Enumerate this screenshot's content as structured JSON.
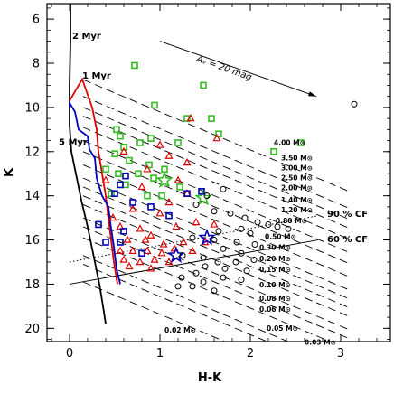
{
  "chart_data": {
    "type": "scatter",
    "title": "",
    "xlabel": "H-K",
    "ylabel": "K",
    "xlim": [
      -0.25,
      3.55
    ],
    "ylim": [
      20.6,
      5.3
    ],
    "y_inverted": true,
    "x_ticks": [
      0,
      1,
      2,
      3
    ],
    "y_ticks": [
      6,
      8,
      10,
      12,
      14,
      16,
      18,
      20
    ],
    "x_tick_labels": [
      "0",
      "1",
      "2",
      "3"
    ],
    "y_tick_labels": [
      "6",
      "8",
      "10",
      "12",
      "14",
      "16",
      "18",
      "20"
    ],
    "isochrones": [
      {
        "label": "2 Myr",
        "label_pos": [
          0.03,
          6.9
        ],
        "color": "#000000",
        "points": [
          [
            0.01,
            5.3
          ],
          [
            0.01,
            7.0
          ],
          [
            0.0,
            9.0
          ],
          [
            0.0,
            10.8
          ],
          [
            0.02,
            12.0
          ],
          [
            0.07,
            13.0
          ],
          [
            0.13,
            14.2
          ],
          [
            0.2,
            15.4
          ],
          [
            0.27,
            16.8
          ],
          [
            0.33,
            18.0
          ],
          [
            0.37,
            19.0
          ],
          [
            0.4,
            19.8
          ]
        ]
      },
      {
        "label": "1 Myr",
        "label_pos": [
          0.14,
          8.7
        ],
        "color": "#dd0000",
        "points": [
          [
            0.0,
            9.7
          ],
          [
            0.14,
            8.72
          ],
          [
            0.25,
            10.0
          ],
          [
            0.3,
            11.0
          ],
          [
            0.32,
            12.0
          ],
          [
            0.36,
            13.0
          ],
          [
            0.4,
            14.0
          ],
          [
            0.43,
            15.0
          ],
          [
            0.46,
            16.0
          ],
          [
            0.49,
            17.0
          ],
          [
            0.53,
            18.0
          ]
        ]
      },
      {
        "label": "5 Myr",
        "label_pos": [
          -0.12,
          11.7
        ],
        "color": "#0000bb",
        "points": [
          [
            0.0,
            10.0
          ],
          [
            0.0,
            9.8
          ],
          [
            0.06,
            10.2
          ],
          [
            0.1,
            11.0
          ],
          [
            0.2,
            11.3
          ],
          [
            0.22,
            11.9
          ],
          [
            0.28,
            12.3
          ],
          [
            0.3,
            13.2
          ],
          [
            0.36,
            14.0
          ],
          [
            0.43,
            14.5
          ],
          [
            0.45,
            15.2
          ],
          [
            0.49,
            16.3
          ],
          [
            0.52,
            17.3
          ],
          [
            0.56,
            18.0
          ]
        ]
      }
    ],
    "reddening_lines": [
      {
        "label": "4.00 M⊙",
        "k0": 8.74,
        "label_pos": [
          2.26,
          11.7
        ]
      },
      {
        "label": "3.50 M⊙",
        "k0": 9.5,
        "label_pos": [
          2.34,
          12.4
        ]
      },
      {
        "label": "3.00 M⊙",
        "k0": 10.0,
        "label_pos": [
          2.34,
          12.85
        ]
      },
      {
        "label": "2.50 M⊙",
        "k0": 10.4,
        "label_pos": [
          2.34,
          13.3
        ]
      },
      {
        "label": "2.00 M⊙",
        "k0": 10.9,
        "label_pos": [
          2.34,
          13.75
        ]
      },
      {
        "label": "1.40 M⊙",
        "k0": 11.5,
        "label_pos": [
          2.34,
          14.3
        ]
      },
      {
        "label": "1.20 M⊙",
        "k0": 12.0,
        "label_pos": [
          2.34,
          14.75
        ]
      },
      {
        "label": "0.80 M⊙",
        "k0": 12.6,
        "label_pos": [
          2.28,
          15.25
        ]
      },
      {
        "label": "0.50 M⊙",
        "k0": 13.2,
        "label_pos": [
          2.16,
          15.95
        ]
      },
      {
        "label": "0.30 M⊙",
        "k0": 13.6,
        "label_pos": [
          2.1,
          16.45
        ]
      },
      {
        "label": "0.20 M⊙",
        "k0": 14.0,
        "label_pos": [
          2.1,
          16.95
        ]
      },
      {
        "label": "0.15 M⊙",
        "k0": 14.4,
        "label_pos": [
          2.1,
          17.45
        ]
      },
      {
        "label": "0.10 M⊙",
        "k0": 15.0,
        "label_pos": [
          2.1,
          18.15
        ]
      },
      {
        "label": "0.08 M⊙",
        "k0": 15.4,
        "label_pos": [
          2.1,
          18.75
        ]
      },
      {
        "label": "0.06 M⊙",
        "k0": 15.9,
        "label_pos": [
          2.1,
          19.25
        ]
      },
      {
        "label": "0.05 M⊙",
        "k0": 16.7,
        "label_pos": [
          2.18,
          20.1
        ]
      },
      {
        "label": "0.03 M⊙",
        "k0": 17.1,
        "label_pos": [
          2.6,
          20.75
        ]
      },
      {
        "label": "0.02 M⊙",
        "k0": 17.9,
        "label_pos": [
          1.05,
          20.2
        ]
      }
    ],
    "reddening_slope": 1.72,
    "reddening_x_end": 3.1,
    "av_arrow": {
      "label": "Aᵥ = 20 mag",
      "from": [
        1.0,
        7.0
      ],
      "to": [
        2.73,
        9.5
      ],
      "label_pos": [
        1.4,
        7.9
      ]
    },
    "completeness": [
      {
        "label": "90 % CF",
        "from": [
          0.0,
          17.0
        ],
        "to": [
          2.75,
          14.9
        ],
        "style": "dotted",
        "label_pos": [
          2.85,
          14.95
        ]
      },
      {
        "label": "60 % CF",
        "from": [
          0.0,
          18.0
        ],
        "to": [
          2.75,
          16.0
        ],
        "style": "solid",
        "label_pos": [
          2.85,
          16.1
        ]
      }
    ],
    "series": [
      {
        "name": "",
        "marker": "square",
        "color": "#33bb22",
        "points": [
          [
            0.72,
            8.1
          ],
          [
            1.48,
            9.0
          ],
          [
            0.94,
            9.9
          ],
          [
            1.3,
            10.5
          ],
          [
            1.57,
            10.5
          ],
          [
            0.52,
            11.0
          ],
          [
            0.56,
            11.3
          ],
          [
            0.9,
            11.4
          ],
          [
            1.2,
            11.6
          ],
          [
            0.78,
            11.6
          ],
          [
            1.65,
            11.2
          ],
          [
            0.6,
            11.8
          ],
          [
            0.5,
            12.1
          ],
          [
            0.66,
            12.4
          ],
          [
            0.88,
            12.6
          ],
          [
            1.05,
            12.8
          ],
          [
            0.4,
            12.8
          ],
          [
            0.54,
            13.0
          ],
          [
            0.76,
            13.0
          ],
          [
            0.93,
            13.2
          ],
          [
            0.62,
            13.5
          ],
          [
            1.22,
            13.6
          ],
          [
            0.46,
            13.9
          ],
          [
            0.86,
            14.0
          ],
          [
            1.02,
            14.0
          ],
          [
            2.26,
            12.0
          ],
          [
            2.56,
            11.6
          ]
        ]
      },
      {
        "name": "",
        "marker": "star",
        "color": "#33bb22",
        "points": [
          [
            1.05,
            13.3
          ],
          [
            1.48,
            14.1
          ]
        ]
      },
      {
        "name": "",
        "marker": "triangle",
        "color": "#dd0000",
        "points": [
          [
            1.34,
            10.5
          ],
          [
            1.63,
            11.4
          ],
          [
            1.0,
            11.7
          ],
          [
            0.6,
            12.0
          ],
          [
            1.1,
            12.2
          ],
          [
            1.3,
            12.5
          ],
          [
            0.86,
            12.8
          ],
          [
            1.2,
            13.3
          ],
          [
            0.4,
            13.3
          ],
          [
            0.8,
            13.6
          ],
          [
            1.3,
            13.9
          ],
          [
            1.1,
            14.3
          ],
          [
            0.7,
            14.6
          ],
          [
            1.0,
            14.8
          ],
          [
            0.48,
            15.0
          ],
          [
            0.56,
            15.4
          ],
          [
            0.78,
            15.5
          ],
          [
            0.9,
            15.8
          ],
          [
            1.18,
            15.4
          ],
          [
            1.4,
            15.2
          ],
          [
            1.6,
            15.3
          ],
          [
            0.64,
            16.0
          ],
          [
            0.84,
            16.0
          ],
          [
            1.04,
            16.2
          ],
          [
            1.26,
            16.1
          ],
          [
            1.5,
            16.1
          ],
          [
            0.56,
            16.5
          ],
          [
            0.7,
            16.5
          ],
          [
            0.86,
            16.5
          ],
          [
            1.02,
            16.6
          ],
          [
            1.16,
            16.4
          ],
          [
            1.36,
            16.5
          ],
          [
            0.6,
            16.9
          ],
          [
            0.78,
            17.0
          ],
          [
            0.94,
            16.9
          ],
          [
            1.1,
            17.0
          ],
          [
            0.66,
            17.2
          ],
          [
            0.9,
            17.3
          ]
        ]
      },
      {
        "name": "",
        "marker": "square",
        "color": "#0000bb",
        "points": [
          [
            0.62,
            13.1
          ],
          [
            0.56,
            13.5
          ],
          [
            0.5,
            13.9
          ],
          [
            0.7,
            14.3
          ],
          [
            0.9,
            14.5
          ],
          [
            1.1,
            14.9
          ],
          [
            1.3,
            13.9
          ],
          [
            1.46,
            13.8
          ],
          [
            0.32,
            15.3
          ],
          [
            0.6,
            15.6
          ],
          [
            0.4,
            16.1
          ],
          [
            0.56,
            16.1
          ],
          [
            0.8,
            16.6
          ]
        ]
      },
      {
        "name": "",
        "marker": "star",
        "color": "#0000bb",
        "points": [
          [
            1.52,
            15.9
          ],
          [
            1.18,
            16.7
          ]
        ]
      },
      {
        "name": "",
        "marker": "circle",
        "color": "#000000",
        "points": [
          [
            1.7,
            13.7
          ],
          [
            1.52,
            14.0
          ],
          [
            1.4,
            14.4
          ],
          [
            1.6,
            14.7
          ],
          [
            1.78,
            14.8
          ],
          [
            1.94,
            15.0
          ],
          [
            2.08,
            15.2
          ],
          [
            2.2,
            15.3
          ],
          [
            2.3,
            15.4
          ],
          [
            2.42,
            15.5
          ],
          [
            1.9,
            15.5
          ],
          [
            1.65,
            15.6
          ],
          [
            2.0,
            15.7
          ],
          [
            1.36,
            15.9
          ],
          [
            1.6,
            16.0
          ],
          [
            1.85,
            16.1
          ],
          [
            2.05,
            16.2
          ],
          [
            1.7,
            16.4
          ],
          [
            1.9,
            16.6
          ],
          [
            1.25,
            16.7
          ],
          [
            1.48,
            16.8
          ],
          [
            1.64,
            17.0
          ],
          [
            1.84,
            17.0
          ],
          [
            2.04,
            16.9
          ],
          [
            1.5,
            17.2
          ],
          [
            1.72,
            17.3
          ],
          [
            1.4,
            17.5
          ],
          [
            1.96,
            17.4
          ],
          [
            1.24,
            17.7
          ],
          [
            1.48,
            17.9
          ],
          [
            1.7,
            17.7
          ],
          [
            1.9,
            17.8
          ],
          [
            1.2,
            18.1
          ],
          [
            1.36,
            18.1
          ],
          [
            1.6,
            18.3
          ],
          [
            3.15,
            9.85
          ]
        ]
      }
    ]
  }
}
